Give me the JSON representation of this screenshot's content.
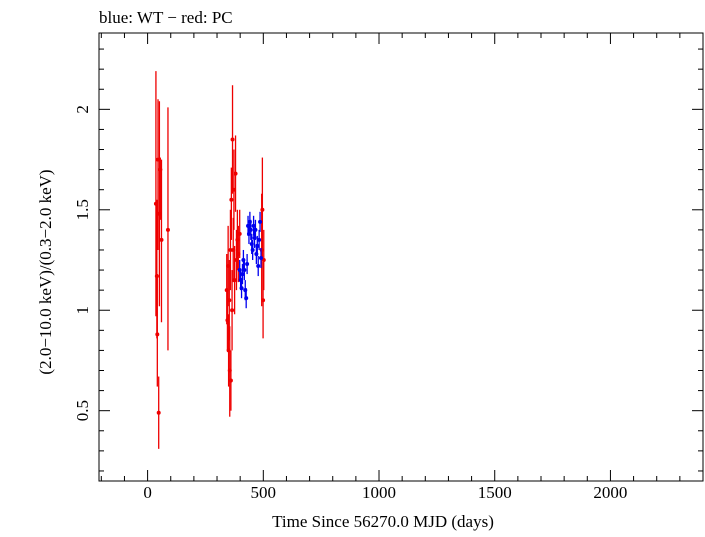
{
  "chart_data": {
    "type": "scatter",
    "title": "blue: WT − red: PC",
    "xlabel": "Time Since 56270.0 MJD (days)",
    "ylabel": "(2.0−10.0 keV)/(0.3−2.0 keV)",
    "xlim": [
      -210,
      2400
    ],
    "ylim": [
      0.15,
      2.38
    ],
    "xticks": [
      0,
      500,
      1000,
      1500,
      2000
    ],
    "yticks": [
      0.5,
      1,
      1.5,
      2
    ],
    "grid": false,
    "colors": {
      "WT": "#0000ee",
      "PC": "#ee0000"
    },
    "series": [
      {
        "name": "PC",
        "color": "#ee0000",
        "points": [
          {
            "x": 36,
            "y": 1.53,
            "lo": 0.97,
            "hi": 2.19
          },
          {
            "x": 40,
            "y": 1.17,
            "lo": 0.86,
            "hi": 1.55
          },
          {
            "x": 42,
            "y": 0.88,
            "lo": 0.62,
            "hi": 1.18
          },
          {
            "x": 45,
            "y": 1.75,
            "lo": 1.3,
            "hi": 2.05
          },
          {
            "x": 48,
            "y": 0.49,
            "lo": 0.31,
            "hi": 0.67
          },
          {
            "x": 51,
            "y": 1.48,
            "lo": 1.02,
            "hi": 2.04
          },
          {
            "x": 55,
            "y": 1.7,
            "lo": 1.45,
            "hi": 1.76
          },
          {
            "x": 60,
            "y": 1.35,
            "lo": 0.94,
            "hi": 1.75
          },
          {
            "x": 88,
            "y": 1.4,
            "lo": 0.8,
            "hi": 2.01
          },
          {
            "x": 342,
            "y": 1.1,
            "lo": 0.93,
            "hi": 1.28
          },
          {
            "x": 345,
            "y": 0.95,
            "lo": 0.8,
            "hi": 1.1
          },
          {
            "x": 348,
            "y": 1.22,
            "lo": 1.02,
            "hi": 1.42
          },
          {
            "x": 350,
            "y": 0.8,
            "lo": 0.62,
            "hi": 0.98
          },
          {
            "x": 353,
            "y": 1.05,
            "lo": 0.85,
            "hi": 1.25
          },
          {
            "x": 355,
            "y": 0.7,
            "lo": 0.47,
            "hi": 0.92
          },
          {
            "x": 358,
            "y": 1.3,
            "lo": 1.1,
            "hi": 1.5
          },
          {
            "x": 360,
            "y": 0.65,
            "lo": 0.5,
            "hi": 0.8
          },
          {
            "x": 362,
            "y": 1.55,
            "lo": 1.35,
            "hi": 1.71
          },
          {
            "x": 365,
            "y": 1.0,
            "lo": 0.8,
            "hi": 1.2
          },
          {
            "x": 367,
            "y": 1.85,
            "lo": 1.58,
            "hi": 2.12
          },
          {
            "x": 370,
            "y": 1.3,
            "lo": 1.14,
            "hi": 1.46
          },
          {
            "x": 373,
            "y": 1.6,
            "lo": 1.4,
            "hi": 1.8
          },
          {
            "x": 376,
            "y": 1.15,
            "lo": 0.98,
            "hi": 1.32
          },
          {
            "x": 380,
            "y": 1.68,
            "lo": 1.49,
            "hi": 1.87
          },
          {
            "x": 384,
            "y": 1.25,
            "lo": 1.1,
            "hi": 1.4
          },
          {
            "x": 388,
            "y": 1.35,
            "lo": 1.2,
            "hi": 1.5
          },
          {
            "x": 392,
            "y": 1.28,
            "lo": 1.14,
            "hi": 1.42
          },
          {
            "x": 398,
            "y": 1.38,
            "lo": 1.26,
            "hi": 1.5
          },
          {
            "x": 493,
            "y": 1.3,
            "lo": 1.02,
            "hi": 1.58
          },
          {
            "x": 496,
            "y": 1.5,
            "lo": 1.25,
            "hi": 1.76
          },
          {
            "x": 499,
            "y": 1.05,
            "lo": 0.86,
            "hi": 1.24
          },
          {
            "x": 502,
            "y": 1.25,
            "lo": 1.1,
            "hi": 1.4
          }
        ]
      },
      {
        "name": "WT",
        "color": "#0000ee",
        "points": [
          {
            "x": 398,
            "y": 1.2,
            "lo": 1.15,
            "hi": 1.25
          },
          {
            "x": 402,
            "y": 1.15,
            "lo": 1.1,
            "hi": 1.2
          },
          {
            "x": 406,
            "y": 1.11,
            "lo": 1.06,
            "hi": 1.16
          },
          {
            "x": 410,
            "y": 1.18,
            "lo": 1.13,
            "hi": 1.23
          },
          {
            "x": 414,
            "y": 1.25,
            "lo": 1.2,
            "hi": 1.3
          },
          {
            "x": 418,
            "y": 1.2,
            "lo": 1.15,
            "hi": 1.25
          },
          {
            "x": 422,
            "y": 1.1,
            "lo": 1.05,
            "hi": 1.15
          },
          {
            "x": 426,
            "y": 1.06,
            "lo": 1.01,
            "hi": 1.11
          },
          {
            "x": 430,
            "y": 1.23,
            "lo": 1.18,
            "hi": 1.28
          },
          {
            "x": 434,
            "y": 1.42,
            "lo": 1.37,
            "hi": 1.47
          },
          {
            "x": 438,
            "y": 1.38,
            "lo": 1.33,
            "hi": 1.43
          },
          {
            "x": 442,
            "y": 1.44,
            "lo": 1.39,
            "hi": 1.49
          },
          {
            "x": 446,
            "y": 1.4,
            "lo": 1.35,
            "hi": 1.45
          },
          {
            "x": 450,
            "y": 1.33,
            "lo": 1.28,
            "hi": 1.38
          },
          {
            "x": 454,
            "y": 1.3,
            "lo": 1.25,
            "hi": 1.35
          },
          {
            "x": 458,
            "y": 1.42,
            "lo": 1.37,
            "hi": 1.47
          },
          {
            "x": 462,
            "y": 1.36,
            "lo": 1.31,
            "hi": 1.41
          },
          {
            "x": 466,
            "y": 1.4,
            "lo": 1.35,
            "hi": 1.45
          },
          {
            "x": 470,
            "y": 1.28,
            "lo": 1.23,
            "hi": 1.33
          },
          {
            "x": 474,
            "y": 1.32,
            "lo": 1.27,
            "hi": 1.37
          },
          {
            "x": 478,
            "y": 1.22,
            "lo": 1.17,
            "hi": 1.27
          },
          {
            "x": 482,
            "y": 1.35,
            "lo": 1.3,
            "hi": 1.4
          },
          {
            "x": 486,
            "y": 1.44,
            "lo": 1.39,
            "hi": 1.49
          },
          {
            "x": 490,
            "y": 1.26,
            "lo": 1.21,
            "hi": 1.31
          }
        ]
      }
    ]
  }
}
